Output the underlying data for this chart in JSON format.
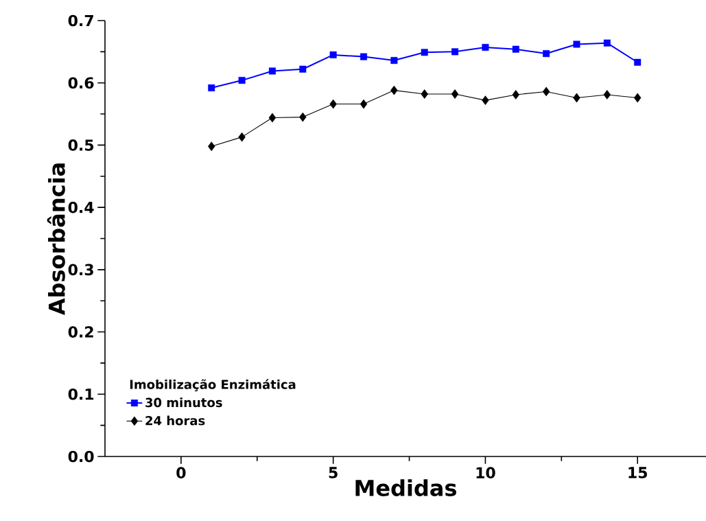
{
  "chart_data": {
    "type": "line",
    "xlabel": "Medidas",
    "ylabel": "Absorbância",
    "legend_title": "Imobilização Enzimática",
    "x": [
      1,
      2,
      3,
      4,
      5,
      6,
      7,
      8,
      9,
      10,
      11,
      12,
      13,
      14,
      15
    ],
    "series": [
      {
        "name": "30 minutos",
        "color": "#0000ff",
        "marker": "square",
        "values": [
          0.592,
          0.604,
          0.619,
          0.622,
          0.645,
          0.642,
          0.636,
          0.649,
          0.65,
          0.657,
          0.654,
          0.647,
          0.662,
          0.664,
          0.633
        ]
      },
      {
        "name": "24 horas",
        "color": "#000000",
        "marker": "diamond",
        "values": [
          0.498,
          0.513,
          0.544,
          0.545,
          0.566,
          0.566,
          0.588,
          0.582,
          0.582,
          0.572,
          0.581,
          0.586,
          0.576,
          0.581,
          0.576
        ]
      }
    ],
    "xlim": [
      -2.5,
      17.25
    ],
    "ylim": [
      0,
      0.7
    ],
    "xticks": [
      0,
      5,
      10,
      15
    ],
    "yticks": [
      {
        "value": 0,
        "label": "0.0"
      },
      0.1,
      0.2,
      0.3,
      0.4,
      0.5,
      0.6,
      0.7
    ],
    "legend": "bottom left",
    "grid": false,
    "line_style": "solid"
  }
}
